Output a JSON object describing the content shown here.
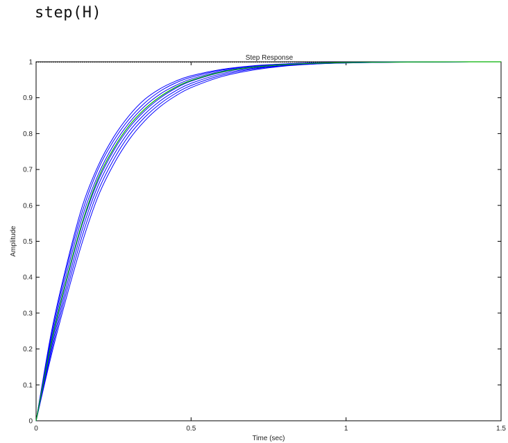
{
  "code": {
    "command": "step(H)"
  },
  "chart_data": {
    "type": "line",
    "title": "Step Response",
    "xlabel": "Time (sec)",
    "ylabel": "Amplitude",
    "xlim": [
      0,
      1.5
    ],
    "ylim": [
      0,
      1
    ],
    "xticks": [
      0,
      0.5,
      1,
      1.5
    ],
    "xtick_labels": [
      "0",
      "0.5",
      "1",
      "1.5"
    ],
    "yticks": [
      0,
      0.1,
      0.2,
      0.3,
      0.4,
      0.5,
      0.6,
      0.7,
      0.8,
      0.9,
      1
    ],
    "ytick_labels": [
      "0",
      "0.1",
      "0.2",
      "0.3",
      "0.4",
      "0.5",
      "0.6",
      "0.7",
      "0.8",
      "0.9",
      "1"
    ],
    "grid": false,
    "reference_line": {
      "y": 1,
      "style": "dotted",
      "color": "#000000"
    },
    "series_colors": {
      "primary": "#0000ff",
      "center": "#00b000"
    },
    "x": [
      0,
      0.05,
      0.1,
      0.15,
      0.2,
      0.25,
      0.3,
      0.35,
      0.4,
      0.45,
      0.5,
      0.6,
      0.7,
      0.8,
      0.9,
      1.0,
      1.1,
      1.2,
      1.3,
      1.4,
      1.5
    ],
    "series": [
      {
        "color": "#0000ff",
        "values": [
          0,
          0.25,
          0.44,
          0.6,
          0.71,
          0.79,
          0.85,
          0.895,
          0.925,
          0.946,
          0.961,
          0.979,
          0.989,
          0.994,
          0.997,
          0.9985,
          0.9993,
          0.9997,
          0.9999,
          1.0,
          1.0
        ]
      },
      {
        "color": "#0000ff",
        "values": [
          0,
          0.24,
          0.43,
          0.585,
          0.7,
          0.78,
          0.84,
          0.885,
          0.918,
          0.941,
          0.957,
          0.977,
          0.988,
          0.994,
          0.997,
          0.9984,
          0.9992,
          0.9996,
          0.9998,
          1.0,
          1.0
        ]
      },
      {
        "color": "#0000ff",
        "values": [
          0,
          0.23,
          0.415,
          0.57,
          0.685,
          0.768,
          0.83,
          0.876,
          0.91,
          0.934,
          0.952,
          0.974,
          0.986,
          0.993,
          0.996,
          0.998,
          0.999,
          0.9995,
          0.9998,
          1.0,
          1.0
        ]
      },
      {
        "color": "#00b000",
        "values": [
          0,
          0.22,
          0.4,
          0.555,
          0.675,
          0.758,
          0.822,
          0.868,
          0.903,
          0.929,
          0.948,
          0.972,
          0.985,
          0.992,
          0.996,
          0.9978,
          0.9989,
          0.9995,
          0.9998,
          1.0,
          1.0
        ]
      },
      {
        "color": "#0000ff",
        "values": [
          0,
          0.215,
          0.395,
          0.55,
          0.668,
          0.752,
          0.816,
          0.863,
          0.899,
          0.926,
          0.946,
          0.971,
          0.984,
          0.992,
          0.996,
          0.9977,
          0.9988,
          0.9994,
          0.9997,
          1.0,
          1.0
        ]
      },
      {
        "color": "#0000ff",
        "values": [
          0,
          0.205,
          0.38,
          0.535,
          0.655,
          0.74,
          0.806,
          0.854,
          0.891,
          0.919,
          0.94,
          0.967,
          0.982,
          0.99,
          0.995,
          0.9973,
          0.9986,
          0.9993,
          0.9997,
          1.0,
          1.0
        ]
      },
      {
        "color": "#0000ff",
        "values": [
          0,
          0.195,
          0.365,
          0.518,
          0.64,
          0.727,
          0.795,
          0.845,
          0.883,
          0.912,
          0.934,
          0.963,
          0.98,
          0.989,
          0.994,
          0.997,
          0.9984,
          0.9992,
          0.9996,
          1.0,
          1.0
        ]
      },
      {
        "color": "#0000ff",
        "values": [
          0,
          0.185,
          0.35,
          0.5,
          0.625,
          0.714,
          0.783,
          0.835,
          0.875,
          0.905,
          0.928,
          0.959,
          0.977,
          0.988,
          0.994,
          0.9967,
          0.9982,
          0.9991,
          0.9996,
          1.0,
          1.0
        ]
      }
    ]
  }
}
